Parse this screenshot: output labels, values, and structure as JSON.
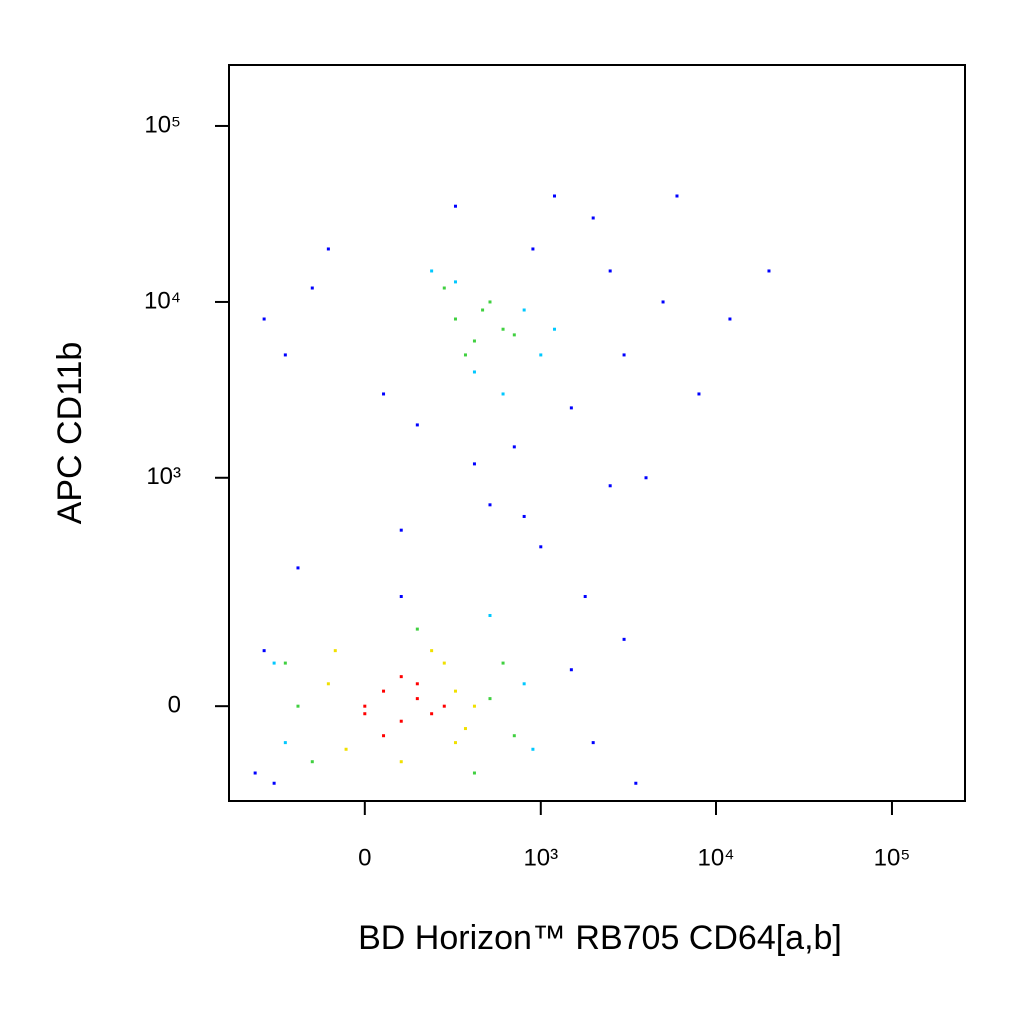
{
  "chart_data": {
    "type": "scatter",
    "x_label": "BD Horizon™ RB705 CD64[a,b]",
    "y_label": "APC CD11b",
    "xscale": "biexponential",
    "yscale": "biexponential",
    "xlim": [
      -580,
      260000
    ],
    "ylim": [
      -160,
      222000
    ],
    "xticks": [
      0,
      {
        "value": 1000,
        "label": "10³"
      },
      {
        "value": 10000,
        "label": "10⁴"
      },
      {
        "value": 100000,
        "label": "10⁵"
      }
    ],
    "yticks": [
      0,
      {
        "value": 1000,
        "label": "10³"
      },
      {
        "value": 10000,
        "label": "10⁴"
      },
      {
        "value": 100000,
        "label": "10⁵"
      }
    ],
    "series": [
      {
        "color": "#0000ff",
        "x": [
          -400,
          -350,
          1500,
          2000,
          3000,
          1800,
          -300,
          -200,
          100,
          500,
          1000,
          2500,
          4000,
          8000,
          20000,
          150,
          50,
          700,
          1500,
          3000,
          -350,
          -100,
          2000,
          5000,
          1200,
          300,
          -250,
          900,
          6000,
          12000,
          -150,
          400,
          2500,
          800,
          100,
          3500
        ],
        "y": [
          -100,
          80,
          50,
          -50,
          100,
          200,
          -120,
          300,
          500,
          700,
          400,
          900,
          1000,
          3000,
          15000,
          2000,
          3000,
          1500,
          2500,
          5000,
          8000,
          20000,
          30000,
          10000,
          40000,
          35000,
          5000,
          20000,
          40000,
          8000,
          12000,
          1200,
          15000,
          600,
          200,
          -120
        ]
      },
      {
        "color": "#00c8ff",
        "x": [
          -250,
          800,
          900,
          500,
          -300,
          1000,
          600,
          200,
          800,
          1200,
          400,
          300
        ],
        "y": [
          -50,
          30,
          -60,
          150,
          60,
          5000,
          3000,
          15000,
          9000,
          7000,
          4000,
          13000
        ]
      },
      {
        "color": "#40d040",
        "x": [
          -200,
          500,
          600,
          -150,
          400,
          700,
          150,
          -250,
          300,
          400,
          500,
          250,
          600,
          350,
          450,
          700
        ],
        "y": [
          0,
          10,
          60,
          -80,
          -100,
          -40,
          120,
          60,
          8000,
          6000,
          10000,
          12000,
          7000,
          5000,
          9000,
          6500
        ]
      },
      {
        "color": "#f0e000",
        "x": [
          -100,
          300,
          350,
          250,
          -50,
          400,
          200,
          100,
          300,
          -80
        ],
        "y": [
          30,
          20,
          -30,
          60,
          -60,
          0,
          80,
          -80,
          -50,
          80
        ]
      },
      {
        "color": "#ff0000",
        "x": [
          0,
          50,
          100,
          150,
          200,
          100,
          50,
          150,
          250,
          0
        ],
        "y": [
          0,
          20,
          -20,
          10,
          -10,
          40,
          -40,
          30,
          0,
          -10
        ]
      }
    ]
  }
}
